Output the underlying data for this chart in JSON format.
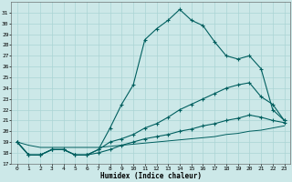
{
  "xlabel": "Humidex (Indice chaleur)",
  "bg_color": "#cce8e8",
  "grid_color": "#aad4d4",
  "line_color": "#005f5f",
  "xlim": [
    -0.5,
    23.5
  ],
  "ylim": [
    17,
    32
  ],
  "yticks": [
    17,
    18,
    19,
    20,
    21,
    22,
    23,
    24,
    25,
    26,
    27,
    28,
    29,
    30,
    31
  ],
  "xticks": [
    0,
    1,
    2,
    3,
    4,
    5,
    6,
    7,
    8,
    9,
    10,
    11,
    12,
    13,
    14,
    15,
    16,
    17,
    18,
    19,
    20,
    21,
    22,
    23
  ],
  "curve1_x": [
    0,
    1,
    2,
    3,
    4,
    5,
    6,
    7,
    8,
    9,
    10,
    11,
    12,
    13,
    14,
    15,
    16,
    17,
    18,
    19,
    20,
    21,
    22,
    23
  ],
  "curve1_y": [
    19.0,
    17.8,
    17.8,
    18.3,
    18.3,
    17.8,
    17.8,
    18.3,
    20.3,
    22.5,
    24.3,
    28.5,
    29.5,
    30.3,
    31.3,
    30.3,
    29.8,
    28.3,
    27.0,
    26.7,
    27.0,
    25.8,
    22.0,
    21.0
  ],
  "curve2_x": [
    0,
    1,
    2,
    3,
    4,
    5,
    6,
    7,
    8,
    9,
    10,
    11,
    12,
    13,
    14,
    15,
    16,
    17,
    18,
    19,
    20,
    21,
    22,
    23
  ],
  "curve2_y": [
    19.0,
    17.8,
    17.8,
    18.3,
    18.3,
    17.8,
    17.8,
    18.3,
    19.0,
    19.3,
    19.7,
    20.3,
    20.7,
    21.3,
    22.0,
    22.5,
    23.0,
    23.5,
    24.0,
    24.3,
    24.5,
    23.2,
    22.5,
    21.0
  ],
  "curve3_x": [
    0,
    1,
    2,
    3,
    4,
    5,
    6,
    7,
    8,
    9,
    10,
    11,
    12,
    13,
    14,
    15,
    16,
    17,
    18,
    19,
    20,
    21,
    22,
    23
  ],
  "curve3_y": [
    19.0,
    17.8,
    17.8,
    18.3,
    18.3,
    17.8,
    17.8,
    18.0,
    18.3,
    18.7,
    19.0,
    19.3,
    19.5,
    19.7,
    20.0,
    20.2,
    20.5,
    20.7,
    21.0,
    21.2,
    21.5,
    21.3,
    21.0,
    20.8
  ],
  "curve4_x": [
    0,
    1,
    2,
    3,
    4,
    5,
    6,
    7,
    8,
    9,
    10,
    11,
    12,
    13,
    14,
    15,
    16,
    17,
    18,
    19,
    20,
    21,
    22,
    23
  ],
  "curve4_y": [
    19.0,
    18.7,
    18.5,
    18.5,
    18.5,
    18.5,
    18.5,
    18.5,
    18.6,
    18.7,
    18.8,
    18.9,
    19.0,
    19.1,
    19.2,
    19.3,
    19.4,
    19.5,
    19.7,
    19.8,
    20.0,
    20.1,
    20.3,
    20.5
  ]
}
